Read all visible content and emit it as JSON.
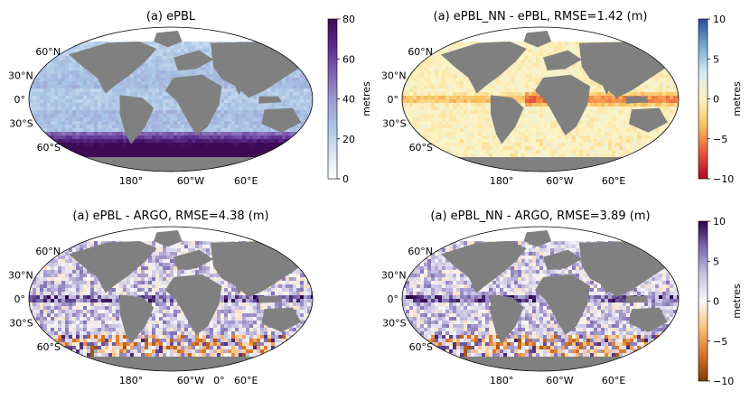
{
  "panels": [
    {
      "id": "epbl",
      "title": "(a) ePBL",
      "field": "mld",
      "lat_labels": [
        "60°N",
        "30°N",
        "0°",
        "30°S",
        "60°S"
      ],
      "lon_labels": [
        "180°",
        "60°W",
        "60°E"
      ]
    },
    {
      "id": "nn-diff",
      "title": "(a) ePBL_NN - ePBL, RMSE=1.42 (m)",
      "field": "diff_nn",
      "lat_labels": [
        "60°N",
        "30°N",
        "0°",
        "30°S",
        "60°S"
      ],
      "lon_labels": [
        "180°",
        "60°W",
        "60°E"
      ]
    },
    {
      "id": "epbl-argo",
      "title": "(a) ePBL - ARGO, RMSE=4.38 (m)",
      "field": "diff_argo",
      "lat_labels": [
        "60°N",
        "30°N",
        "0°",
        "30°S",
        "60°S"
      ],
      "lon_labels": [
        "180°",
        "60°W",
        "0°",
        "60°E"
      ]
    },
    {
      "id": "nn-argo",
      "title": "(a) ePBL_NN - ARGO, RMSE=3.89 (m)",
      "field": "diff_argo2",
      "lat_labels": [
        "60°N",
        "30°N",
        "0°",
        "30°S",
        "60°S"
      ],
      "lon_labels": [
        "180°",
        "60°W",
        "60°E"
      ]
    }
  ],
  "colorbars": [
    {
      "id": "cb-mld",
      "label": "metres",
      "ticks": [
        "80",
        "60",
        "40",
        "20",
        "0"
      ],
      "min": 0,
      "max": 80,
      "colors": [
        "#ffffff",
        "#d6e4f3",
        "#a9c4e4",
        "#9c98cf",
        "#7f5fb0",
        "#5c2a8c",
        "#3f0a55"
      ]
    },
    {
      "id": "cb-rdbu",
      "label": "metres",
      "ticks": [
        "10",
        "5",
        "0",
        "−5",
        "−10"
      ],
      "min": -10,
      "max": 10,
      "colors": [
        "#b40426",
        "#e8573a",
        "#f9c25d",
        "#fdf3c3",
        "#d3ebf3",
        "#72aacf",
        "#2c4a9a"
      ]
    },
    {
      "id": "cb-puor",
      "label": "metres",
      "ticks": [
        "10",
        "5",
        "0",
        "−5",
        "−10"
      ],
      "min": -10,
      "max": 10,
      "colors": [
        "#7f3b08",
        "#d9752a",
        "#fdc17b",
        "#f7f7f7",
        "#c8c3e2",
        "#7f6db3",
        "#2d004b"
      ]
    }
  ],
  "colors": {
    "land": "#808080",
    "frame": "#000000"
  }
}
